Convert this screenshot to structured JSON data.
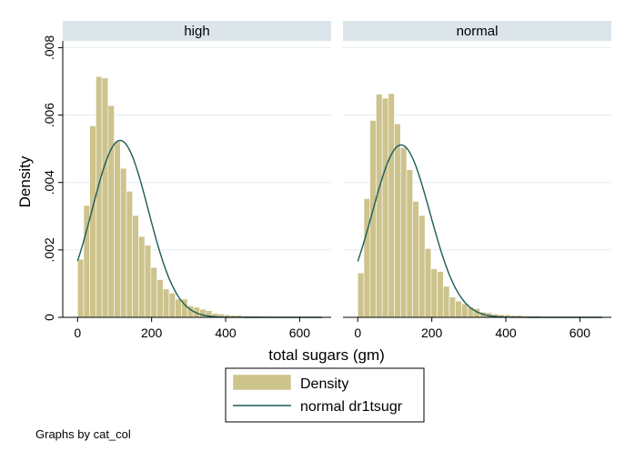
{
  "chart_data": {
    "type": "bar",
    "ylabel": "Density",
    "xlabel": "total sugars (gm)",
    "x_ticks": [
      0,
      200,
      400,
      600
    ],
    "y_ticks": [
      0,
      0.002,
      0.004,
      0.006,
      0.008
    ],
    "y_tick_labels": [
      "0",
      ".002",
      ".004",
      ".006",
      ".008"
    ],
    "xlim": [
      -40,
      685
    ],
    "ylim": [
      0,
      0.0082
    ],
    "bin_width": 16.5,
    "x_start": 0,
    "grid": true,
    "legend": {
      "position": "bottom",
      "entries": [
        "Density",
        "normal dr1tsugr"
      ]
    },
    "note": "Graphs by cat_col",
    "panels": [
      {
        "title": "high",
        "densities": [
          0.00172,
          0.00332,
          0.00568,
          0.00714,
          0.0071,
          0.00628,
          0.00522,
          0.00442,
          0.00374,
          0.00302,
          0.0024,
          0.00214,
          0.00148,
          0.00112,
          0.00084,
          0.00072,
          0.00054,
          0.00054,
          0.00034,
          0.0003,
          0.00024,
          0.0002,
          0.00012,
          0.0001,
          8e-05,
          6e-05,
          6e-05,
          4e-05,
          4e-05,
          4e-05,
          3e-05,
          2e-05,
          2e-05,
          2e-05,
          2e-05,
          2e-05,
          1e-05,
          1e-05,
          1e-05,
          1e-05
        ],
        "normal": {
          "mean": 115,
          "sd": 76
        }
      },
      {
        "title": "normal",
        "densities": [
          0.00132,
          0.00352,
          0.00584,
          0.00662,
          0.0065,
          0.00664,
          0.00574,
          0.00504,
          0.00438,
          0.00344,
          0.00302,
          0.00204,
          0.00144,
          0.00136,
          0.00092,
          0.0006,
          0.00048,
          0.0004,
          0.0003,
          0.00026,
          0.00016,
          0.00014,
          0.0001,
          8e-05,
          8e-05,
          6e-05,
          6e-05,
          4e-05,
          4e-05,
          4e-05,
          2e-05,
          2e-05,
          2e-05,
          2e-05,
          2e-05,
          2e-05,
          1e-05,
          1e-05,
          1e-05,
          1e-05
        ],
        "normal": {
          "mean": 117,
          "sd": 78
        }
      }
    ],
    "colors": {
      "bar_fill": "#cdc38c",
      "bar_stroke": "#ffffff",
      "curve": "#1b5c58",
      "header_bg": "#dce6ea",
      "grid": "#e4ecf0",
      "axis": "#000000"
    }
  }
}
